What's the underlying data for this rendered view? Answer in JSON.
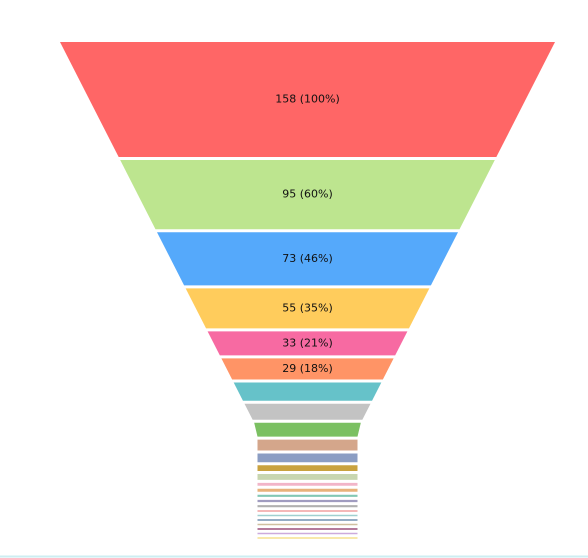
{
  "chart_data": {
    "type": "funnel",
    "values": [
      158,
      95,
      73,
      55,
      33,
      29,
      25,
      22,
      19,
      15,
      12,
      8,
      8,
      4,
      4,
      3,
      3,
      3,
      2,
      2,
      2,
      2,
      2,
      1,
      1
    ],
    "value_labels": [
      "158 (100%)",
      "95 (60%)",
      "73 (46%)",
      "55 (35%)",
      "33 (21%)",
      "29 (18%)",
      null,
      null,
      null,
      null,
      null,
      null,
      null,
      null,
      null,
      null,
      null,
      null,
      null,
      null,
      null,
      null,
      null,
      null,
      null
    ],
    "colors": [
      "#ff6666",
      "#bde58f",
      "#55a9fb",
      "#ffcc5c",
      "#f76aa2",
      "#ff9466",
      "#66c2c9",
      "#c3c3c3",
      "#7bc062",
      "#d4a68b",
      "#8b9dc3",
      "#c9a23f",
      "#c8d6b0",
      "#f2b5c8",
      "#e8b27a",
      "#82c8b4",
      "#a09cc0",
      "#b0b0b0",
      "#f0a0a0",
      "#a0d0d0",
      "#7090b0",
      "#d0c0a0",
      "#9b4f7a",
      "#ccaadd",
      "#f5e08f"
    ]
  }
}
